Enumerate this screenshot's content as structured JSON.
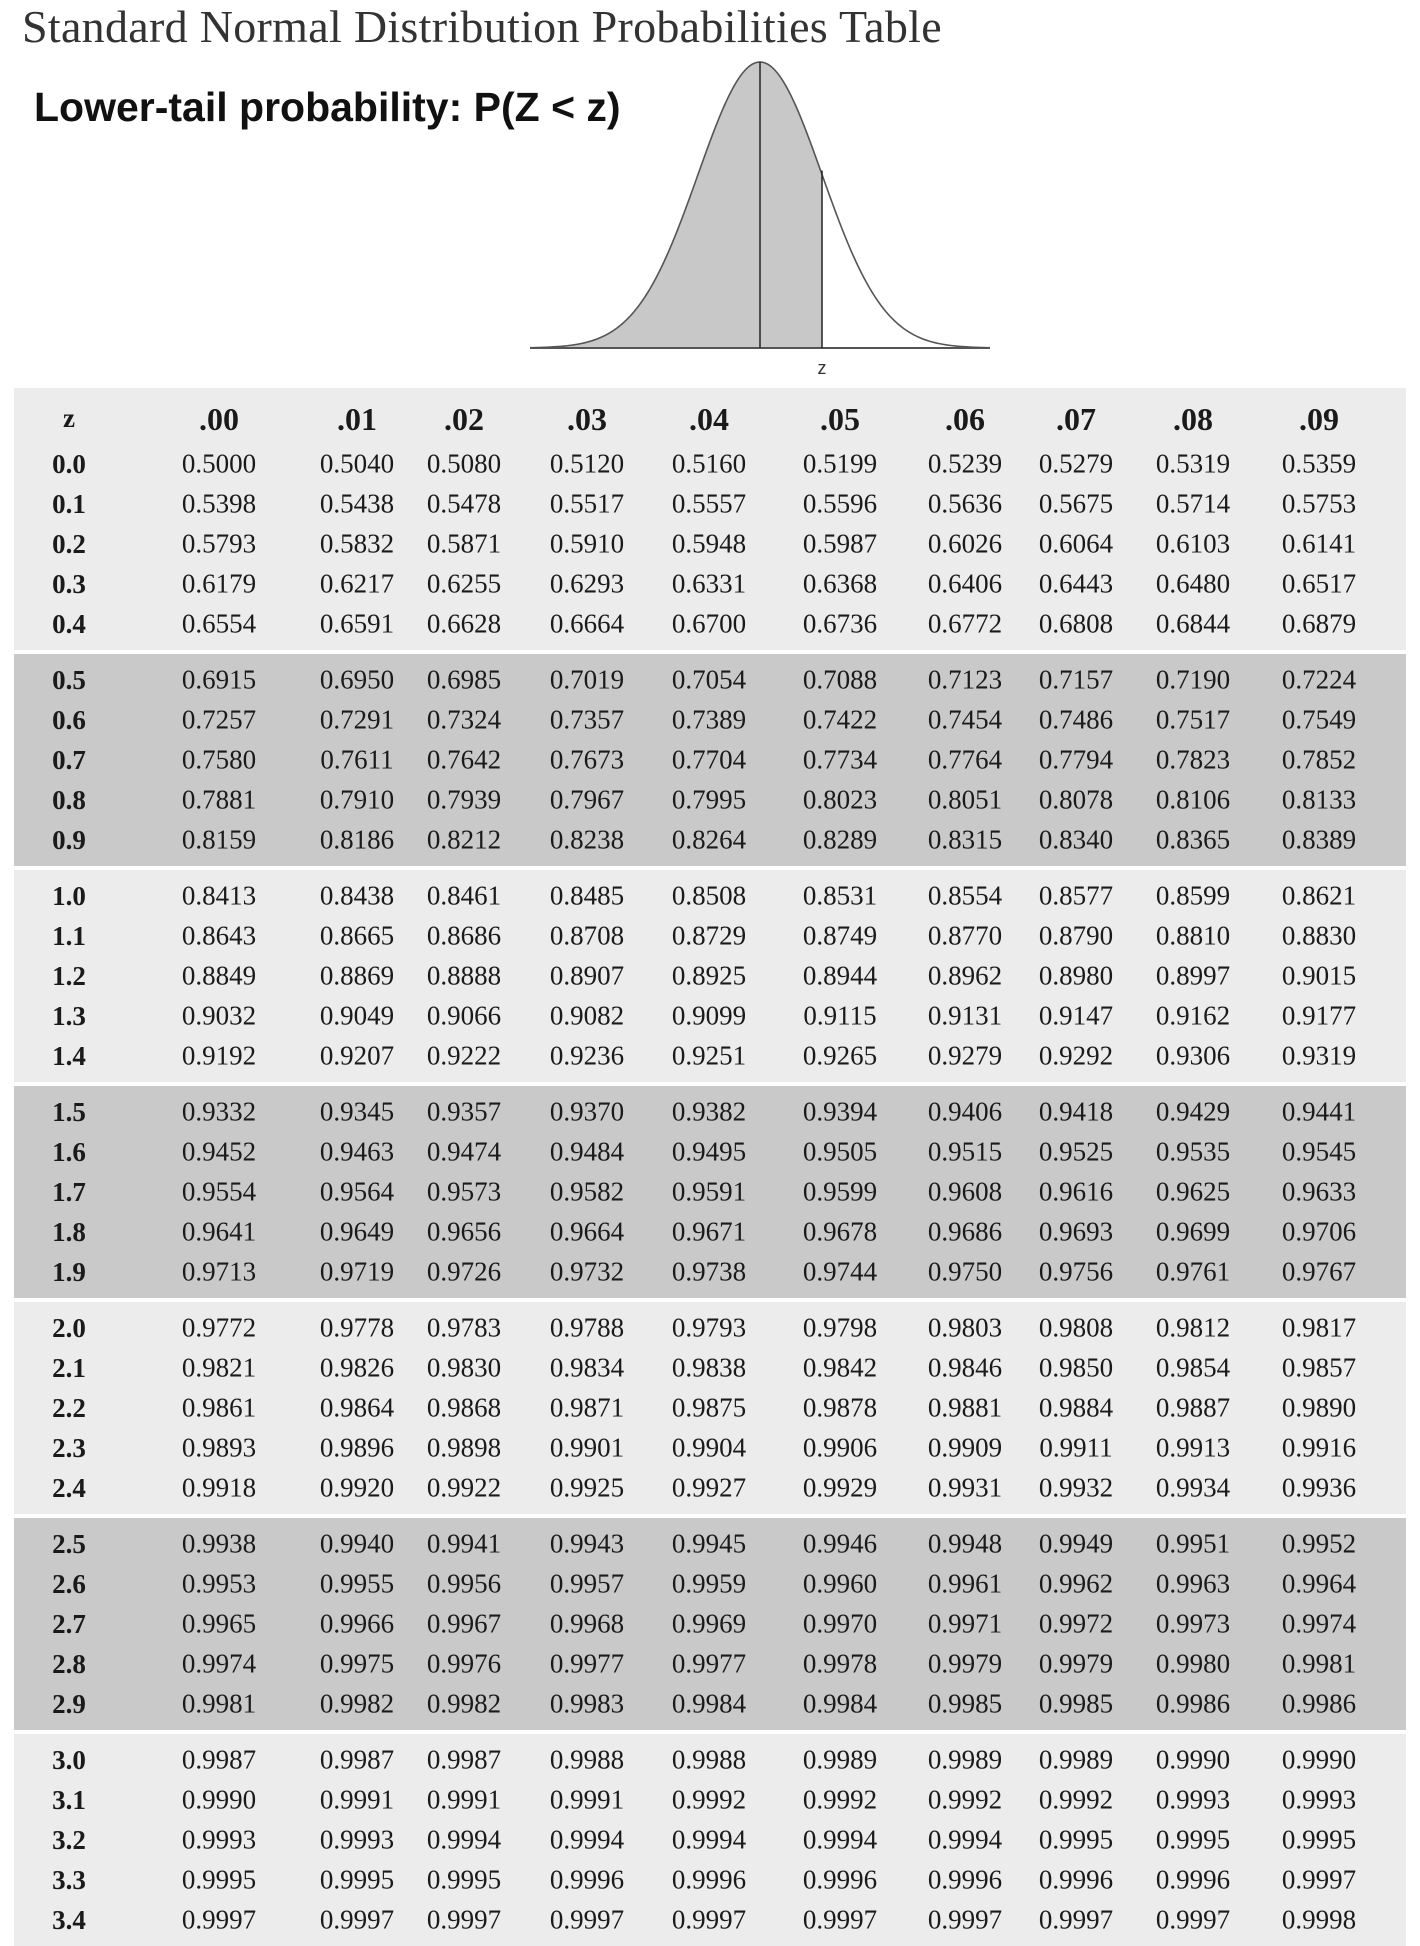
{
  "title": "Standard Normal Distribution Probabilities Table",
  "subtitle": "Lower-tail probability: P(Z < z)",
  "curve": {
    "axis_label": "z"
  },
  "table": {
    "z_header": "z",
    "columns": [
      ".00",
      ".01",
      ".02",
      ".03",
      ".04",
      ".05",
      ".06",
      ".07",
      ".08",
      ".09"
    ],
    "rows": [
      {
        "z": "0.0",
        "values": [
          "0.5000",
          "0.5040",
          "0.5080",
          "0.5120",
          "0.5160",
          "0.5199",
          "0.5239",
          "0.5279",
          "0.5319",
          "0.5359"
        ]
      },
      {
        "z": "0.1",
        "values": [
          "0.5398",
          "0.5438",
          "0.5478",
          "0.5517",
          "0.5557",
          "0.5596",
          "0.5636",
          "0.5675",
          "0.5714",
          "0.5753"
        ]
      },
      {
        "z": "0.2",
        "values": [
          "0.5793",
          "0.5832",
          "0.5871",
          "0.5910",
          "0.5948",
          "0.5987",
          "0.6026",
          "0.6064",
          "0.6103",
          "0.6141"
        ]
      },
      {
        "z": "0.3",
        "values": [
          "0.6179",
          "0.6217",
          "0.6255",
          "0.6293",
          "0.6331",
          "0.6368",
          "0.6406",
          "0.6443",
          "0.6480",
          "0.6517"
        ]
      },
      {
        "z": "0.4",
        "values": [
          "0.6554",
          "0.6591",
          "0.6628",
          "0.6664",
          "0.6700",
          "0.6736",
          "0.6772",
          "0.6808",
          "0.6844",
          "0.6879"
        ]
      },
      {
        "z": "0.5",
        "values": [
          "0.6915",
          "0.6950",
          "0.6985",
          "0.7019",
          "0.7054",
          "0.7088",
          "0.7123",
          "0.7157",
          "0.7190",
          "0.7224"
        ]
      },
      {
        "z": "0.6",
        "values": [
          "0.7257",
          "0.7291",
          "0.7324",
          "0.7357",
          "0.7389",
          "0.7422",
          "0.7454",
          "0.7486",
          "0.7517",
          "0.7549"
        ]
      },
      {
        "z": "0.7",
        "values": [
          "0.7580",
          "0.7611",
          "0.7642",
          "0.7673",
          "0.7704",
          "0.7734",
          "0.7764",
          "0.7794",
          "0.7823",
          "0.7852"
        ]
      },
      {
        "z": "0.8",
        "values": [
          "0.7881",
          "0.7910",
          "0.7939",
          "0.7967",
          "0.7995",
          "0.8023",
          "0.8051",
          "0.8078",
          "0.8106",
          "0.8133"
        ]
      },
      {
        "z": "0.9",
        "values": [
          "0.8159",
          "0.8186",
          "0.8212",
          "0.8238",
          "0.8264",
          "0.8289",
          "0.8315",
          "0.8340",
          "0.8365",
          "0.8389"
        ]
      },
      {
        "z": "1.0",
        "values": [
          "0.8413",
          "0.8438",
          "0.8461",
          "0.8485",
          "0.8508",
          "0.8531",
          "0.8554",
          "0.8577",
          "0.8599",
          "0.8621"
        ]
      },
      {
        "z": "1.1",
        "values": [
          "0.8643",
          "0.8665",
          "0.8686",
          "0.8708",
          "0.8729",
          "0.8749",
          "0.8770",
          "0.8790",
          "0.8810",
          "0.8830"
        ]
      },
      {
        "z": "1.2",
        "values": [
          "0.8849",
          "0.8869",
          "0.8888",
          "0.8907",
          "0.8925",
          "0.8944",
          "0.8962",
          "0.8980",
          "0.8997",
          "0.9015"
        ]
      },
      {
        "z": "1.3",
        "values": [
          "0.9032",
          "0.9049",
          "0.9066",
          "0.9082",
          "0.9099",
          "0.9115",
          "0.9131",
          "0.9147",
          "0.9162",
          "0.9177"
        ]
      },
      {
        "z": "1.4",
        "values": [
          "0.9192",
          "0.9207",
          "0.9222",
          "0.9236",
          "0.9251",
          "0.9265",
          "0.9279",
          "0.9292",
          "0.9306",
          "0.9319"
        ]
      },
      {
        "z": "1.5",
        "values": [
          "0.9332",
          "0.9345",
          "0.9357",
          "0.9370",
          "0.9382",
          "0.9394",
          "0.9406",
          "0.9418",
          "0.9429",
          "0.9441"
        ]
      },
      {
        "z": "1.6",
        "values": [
          "0.9452",
          "0.9463",
          "0.9474",
          "0.9484",
          "0.9495",
          "0.9505",
          "0.9515",
          "0.9525",
          "0.9535",
          "0.9545"
        ]
      },
      {
        "z": "1.7",
        "values": [
          "0.9554",
          "0.9564",
          "0.9573",
          "0.9582",
          "0.9591",
          "0.9599",
          "0.9608",
          "0.9616",
          "0.9625",
          "0.9633"
        ]
      },
      {
        "z": "1.8",
        "values": [
          "0.9641",
          "0.9649",
          "0.9656",
          "0.9664",
          "0.9671",
          "0.9678",
          "0.9686",
          "0.9693",
          "0.9699",
          "0.9706"
        ]
      },
      {
        "z": "1.9",
        "values": [
          "0.9713",
          "0.9719",
          "0.9726",
          "0.9732",
          "0.9738",
          "0.9744",
          "0.9750",
          "0.9756",
          "0.9761",
          "0.9767"
        ]
      },
      {
        "z": "2.0",
        "values": [
          "0.9772",
          "0.9778",
          "0.9783",
          "0.9788",
          "0.9793",
          "0.9798",
          "0.9803",
          "0.9808",
          "0.9812",
          "0.9817"
        ]
      },
      {
        "z": "2.1",
        "values": [
          "0.9821",
          "0.9826",
          "0.9830",
          "0.9834",
          "0.9838",
          "0.9842",
          "0.9846",
          "0.9850",
          "0.9854",
          "0.9857"
        ]
      },
      {
        "z": "2.2",
        "values": [
          "0.9861",
          "0.9864",
          "0.9868",
          "0.9871",
          "0.9875",
          "0.9878",
          "0.9881",
          "0.9884",
          "0.9887",
          "0.9890"
        ]
      },
      {
        "z": "2.3",
        "values": [
          "0.9893",
          "0.9896",
          "0.9898",
          "0.9901",
          "0.9904",
          "0.9906",
          "0.9909",
          "0.9911",
          "0.9913",
          "0.9916"
        ]
      },
      {
        "z": "2.4",
        "values": [
          "0.9918",
          "0.9920",
          "0.9922",
          "0.9925",
          "0.9927",
          "0.9929",
          "0.9931",
          "0.9932",
          "0.9934",
          "0.9936"
        ]
      },
      {
        "z": "2.5",
        "values": [
          "0.9938",
          "0.9940",
          "0.9941",
          "0.9943",
          "0.9945",
          "0.9946",
          "0.9948",
          "0.9949",
          "0.9951",
          "0.9952"
        ]
      },
      {
        "z": "2.6",
        "values": [
          "0.9953",
          "0.9955",
          "0.9956",
          "0.9957",
          "0.9959",
          "0.9960",
          "0.9961",
          "0.9962",
          "0.9963",
          "0.9964"
        ]
      },
      {
        "z": "2.7",
        "values": [
          "0.9965",
          "0.9966",
          "0.9967",
          "0.9968",
          "0.9969",
          "0.9970",
          "0.9971",
          "0.9972",
          "0.9973",
          "0.9974"
        ]
      },
      {
        "z": "2.8",
        "values": [
          "0.9974",
          "0.9975",
          "0.9976",
          "0.9977",
          "0.9977",
          "0.9978",
          "0.9979",
          "0.9979",
          "0.9980",
          "0.9981"
        ]
      },
      {
        "z": "2.9",
        "values": [
          "0.9981",
          "0.9982",
          "0.9982",
          "0.9983",
          "0.9984",
          "0.9984",
          "0.9985",
          "0.9985",
          "0.9986",
          "0.9986"
        ]
      },
      {
        "z": "3.0",
        "values": [
          "0.9987",
          "0.9987",
          "0.9987",
          "0.9988",
          "0.9988",
          "0.9989",
          "0.9989",
          "0.9989",
          "0.9990",
          "0.9990"
        ]
      },
      {
        "z": "3.1",
        "values": [
          "0.9990",
          "0.9991",
          "0.9991",
          "0.9991",
          "0.9992",
          "0.9992",
          "0.9992",
          "0.9992",
          "0.9993",
          "0.9993"
        ]
      },
      {
        "z": "3.2",
        "values": [
          "0.9993",
          "0.9993",
          "0.9994",
          "0.9994",
          "0.9994",
          "0.9994",
          "0.9994",
          "0.9995",
          "0.9995",
          "0.9995"
        ]
      },
      {
        "z": "3.3",
        "values": [
          "0.9995",
          "0.9995",
          "0.9995",
          "0.9996",
          "0.9996",
          "0.9996",
          "0.9996",
          "0.9996",
          "0.9996",
          "0.9997"
        ]
      },
      {
        "z": "3.4",
        "values": [
          "0.9997",
          "0.9997",
          "0.9997",
          "0.9997",
          "0.9997",
          "0.9997",
          "0.9997",
          "0.9997",
          "0.9997",
          "0.9998"
        ]
      }
    ]
  },
  "colors": {
    "band_light": "#ececec",
    "band_dark": "#c9c9c9",
    "curve_fill": "#c8c8c8"
  }
}
